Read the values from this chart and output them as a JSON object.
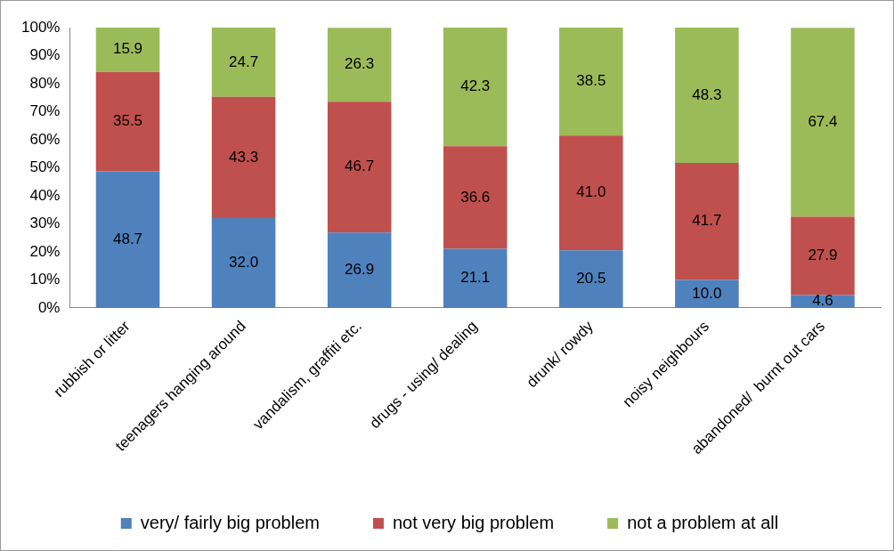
{
  "chart_data": {
    "type": "bar",
    "stacked": true,
    "categories": [
      "rubbish or litter",
      "teenagers hanging around",
      "vandalism, graffiti etc.",
      "drugs - using/ dealing",
      "drunk/ rowdy",
      "noisy neighbours",
      "abandoned/  burnt out cars"
    ],
    "series": [
      {
        "name": "very/ fairly big problem",
        "color": "#4f81bd",
        "values": [
          48.7,
          32.0,
          26.9,
          21.1,
          20.5,
          10.0,
          4.6
        ],
        "value_labels": [
          "48.7",
          "32.0",
          "26.9",
          "21.1",
          "20.5",
          "10.0",
          "4.6"
        ]
      },
      {
        "name": "not very big problem",
        "color": "#c0504d",
        "values": [
          35.5,
          43.3,
          46.7,
          36.6,
          41.0,
          41.7,
          27.9
        ],
        "value_labels": [
          "35.5",
          "43.3",
          "46.7",
          "36.6",
          "41.0",
          "41.7",
          "27.9"
        ]
      },
      {
        "name": "not a problem at all",
        "color": "#9bbb59",
        "values": [
          15.9,
          24.7,
          26.3,
          42.3,
          38.5,
          48.3,
          67.4
        ],
        "value_labels": [
          "15.9",
          "24.7",
          "26.3",
          "42.3",
          "38.5",
          "48.3",
          "67.4"
        ]
      }
    ],
    "ylim": [
      0,
      100
    ],
    "yticks": [
      {
        "value": 0,
        "label": "0%"
      },
      {
        "value": 10,
        "label": "10%"
      },
      {
        "value": 20,
        "label": "20%"
      },
      {
        "value": 30,
        "label": "30%"
      },
      {
        "value": 40,
        "label": "40%"
      },
      {
        "value": 50,
        "label": "50%"
      },
      {
        "value": 60,
        "label": "60%"
      },
      {
        "value": 70,
        "label": "70%"
      },
      {
        "value": 80,
        "label": "80%"
      },
      {
        "value": 90,
        "label": "90%"
      },
      {
        "value": 100,
        "label": "100%"
      }
    ],
    "grid": false,
    "legend": "bottom"
  }
}
